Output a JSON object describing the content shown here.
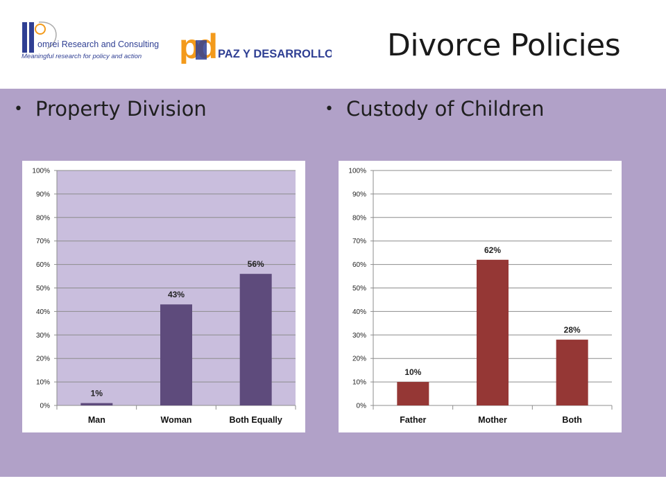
{
  "header": {
    "title": "Divorce Policies",
    "logos": [
      {
        "name": "dorei-logo",
        "line1": "omrei Research and Consulting",
        "line2": "Meaningful research for policy and action"
      },
      {
        "name": "paz-logo",
        "mark": "pd",
        "text": "PAZ Y DESARROLLO"
      }
    ]
  },
  "bullets": {
    "left": "Property Division",
    "right": "Custody of Children"
  },
  "colors": {
    "band": "#b1a1c8",
    "plot_left_bg": "#c9bedd",
    "bar_left": "#5e4b7c",
    "bar_right": "#953735",
    "logo_blue": "#2f3f93",
    "logo_orange": "#f39a1b"
  },
  "chart_data": [
    {
      "type": "bar",
      "title": "",
      "categories": [
        "Man",
        "Woman",
        "Both Equally"
      ],
      "values": [
        1,
        43,
        56
      ],
      "data_labels": [
        "1%",
        "43%",
        "56%"
      ],
      "ylim": [
        0,
        100
      ],
      "yticks": [
        "0%",
        "10%",
        "20%",
        "30%",
        "40%",
        "50%",
        "60%",
        "70%",
        "80%",
        "90%",
        "100%"
      ],
      "grid": true,
      "color": "#5e4b7c"
    },
    {
      "type": "bar",
      "title": "",
      "categories": [
        "Father",
        "Mother",
        "Both"
      ],
      "values": [
        10,
        62,
        28
      ],
      "data_labels": [
        "10%",
        "62%",
        "28%"
      ],
      "ylim": [
        0,
        100
      ],
      "yticks": [
        "0%",
        "10%",
        "20%",
        "30%",
        "40%",
        "50%",
        "60%",
        "70%",
        "80%",
        "90%",
        "100%"
      ],
      "grid": true,
      "color": "#953735"
    }
  ]
}
